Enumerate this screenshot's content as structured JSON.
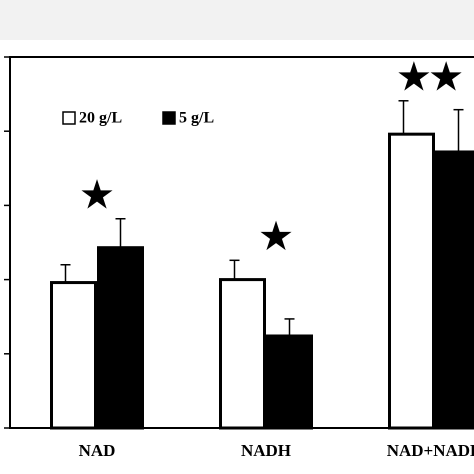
{
  "chart_data": {
    "type": "bar",
    "categories": [
      "NAD",
      "NADH",
      "NAD+NADH"
    ],
    "series": [
      {
        "name": "20 g/L",
        "color": "#ffffff",
        "values": [
          1.96,
          2.0,
          3.96
        ],
        "errors": [
          0.24,
          0.26,
          0.45
        ]
      },
      {
        "name": "5 g/L",
        "color": "#000000",
        "values": [
          2.43,
          1.24,
          3.72
        ],
        "errors": [
          0.39,
          0.23,
          0.57
        ]
      }
    ],
    "annotations": [
      "★",
      "★",
      "★★"
    ],
    "ylim": [
      0,
      5
    ],
    "yticks": [
      0,
      1,
      2,
      3,
      4,
      5
    ]
  }
}
